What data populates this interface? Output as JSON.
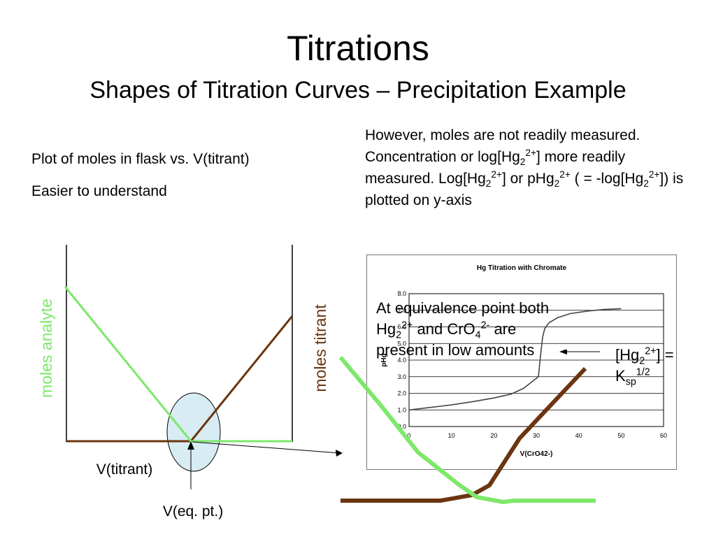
{
  "title": "Titrations",
  "subtitle": "Shapes of Titration Curves – Precipitation Example",
  "bullets": {
    "b1": "Plot of moles in flask vs. V(titrant)",
    "b2": "Easier to understand"
  },
  "note": {
    "p1": "However, moles are not readily measured.  Concentration or log[Hg",
    "sub1": "2",
    "sup1": "2+",
    "p2": "] more readily measured. Log[Hg",
    "sub2": "2",
    "sup2": "2+",
    "p3": "] or pHg",
    "sub3": "2",
    "sup3": "2+",
    "p4": " ( = -log[Hg",
    "sub4": "2",
    "sup4": "2+",
    "p5": "]) is plotted on y-axis"
  },
  "left_plot": {
    "ylabel_left": "moles analyte",
    "ylabel_right": "moles titrant",
    "xlabel": "V(titrant)",
    "eq_label": "V(eq. pt.)",
    "colors": {
      "analyte": "#7de86a",
      "titrant": "#6b3510",
      "axis": "#000000"
    }
  },
  "chart_data": {
    "type": "line",
    "title": "Hg Titration with Chromate",
    "xlabel": "V(CrO42-)",
    "ylabel": "pHg",
    "xlim": [
      0,
      60
    ],
    "ylim": [
      0,
      8
    ],
    "xticks": [
      0,
      10,
      20,
      30,
      40,
      50,
      60
    ],
    "yticks": [
      0.0,
      1.0,
      2.0,
      3.0,
      4.0,
      5.0,
      6.0,
      7.0,
      8.0
    ],
    "grid": "horizontal",
    "series": [
      {
        "color": "#444444",
        "x": [
          0,
          5,
          10,
          15,
          20,
          24,
          27,
          29,
          30.5,
          31,
          31.5,
          32,
          33,
          35,
          38,
          42,
          46,
          50
        ],
        "y": [
          1.0,
          1.15,
          1.3,
          1.5,
          1.72,
          1.95,
          2.3,
          2.7,
          3.0,
          4.3,
          5.4,
          5.9,
          6.25,
          6.55,
          6.8,
          6.95,
          7.05,
          7.1
        ]
      }
    ]
  },
  "callout": {
    "l1": "At equivalence point both",
    "l2a": "Hg",
    "l2sub": "2",
    "l2sup": "2+",
    "l2b": " and CrO",
    "l2sub2": "4",
    "l2sup2": "2-",
    "l2c": " are",
    "l3": "present in low amounts"
  },
  "hg_label": {
    "a": "[Hg",
    "sub": "2",
    "sup": "2+",
    "b": "] =",
    "c": "K",
    "csub": "sp",
    "csup": "1/2"
  },
  "zoom_colors": {
    "green": "#7de86a",
    "brown": "#6b3510"
  }
}
